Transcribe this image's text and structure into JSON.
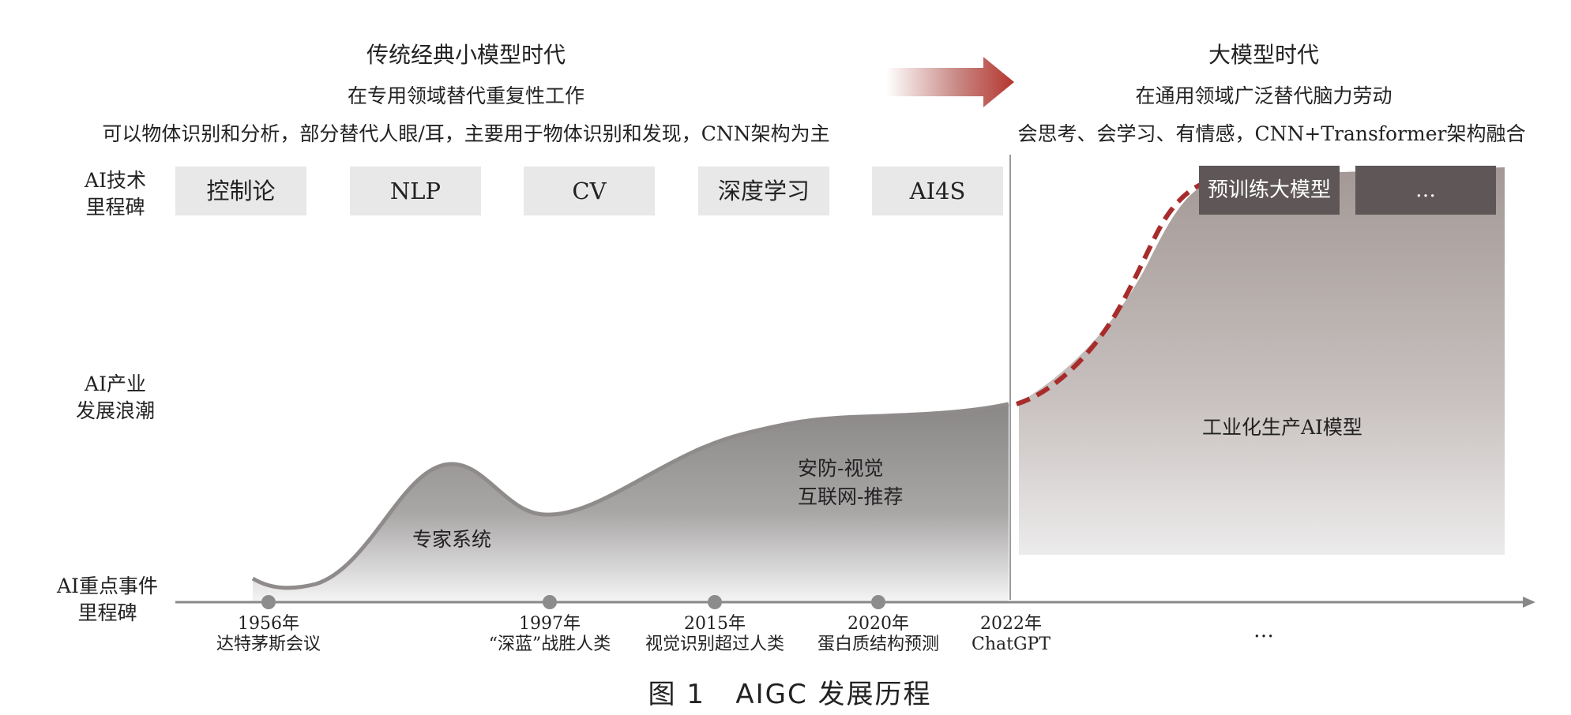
{
  "left_era": {
    "title": "传统经典小模型时代",
    "subtitle": "在专用领域替代重复性工作",
    "description": "可以物体识别和分析，部分替代人眼/耳，主要用于物体识别和发现，CNN架构为主"
  },
  "right_era": {
    "title": "大模型时代",
    "subtitle": "在通用领域广泛替代脑力劳动",
    "description": "会思考、会学习、有情感，CNN+Transformer架构融合"
  },
  "row_labels": {
    "tech": "AI技术\n里程碑",
    "industry": "AI产业\n发展浪潮",
    "events": "AI重点事件\n里程碑"
  },
  "tech_milestones": [
    "控制论",
    "NLP",
    "CV",
    "深度学习",
    "AI4S"
  ],
  "large_model_milestones": [
    "预训练大模型",
    "…"
  ],
  "region_labels": {
    "expert_system": "专家系统",
    "security_internet": "安防-视觉\n互联网-推荐",
    "industrial": "工业化生产AI模型"
  },
  "events": [
    {
      "year": "1956年",
      "text": "达特茅斯会议"
    },
    {
      "year": "1997年",
      "text": "“深蓝”战胜人类"
    },
    {
      "year": "2015年",
      "text": "视觉识别超过人类"
    },
    {
      "year": "2020年",
      "text": "蛋白质结构预测"
    },
    {
      "year": "2022年",
      "text": "ChatGPT"
    }
  ],
  "events_more": "…",
  "caption": "图 1   AIGC 发展历程",
  "colors": {
    "arrow": "#b5362f",
    "dashed_curve": "#a82c2c",
    "chip_light": "#e8e8e8",
    "chip_dark": "#5f5757",
    "wave_fill": "#8e8b8b",
    "large_model_fill": "#a79c9a",
    "timeline": "#888888",
    "event_dot": "#8c8c8c"
  }
}
